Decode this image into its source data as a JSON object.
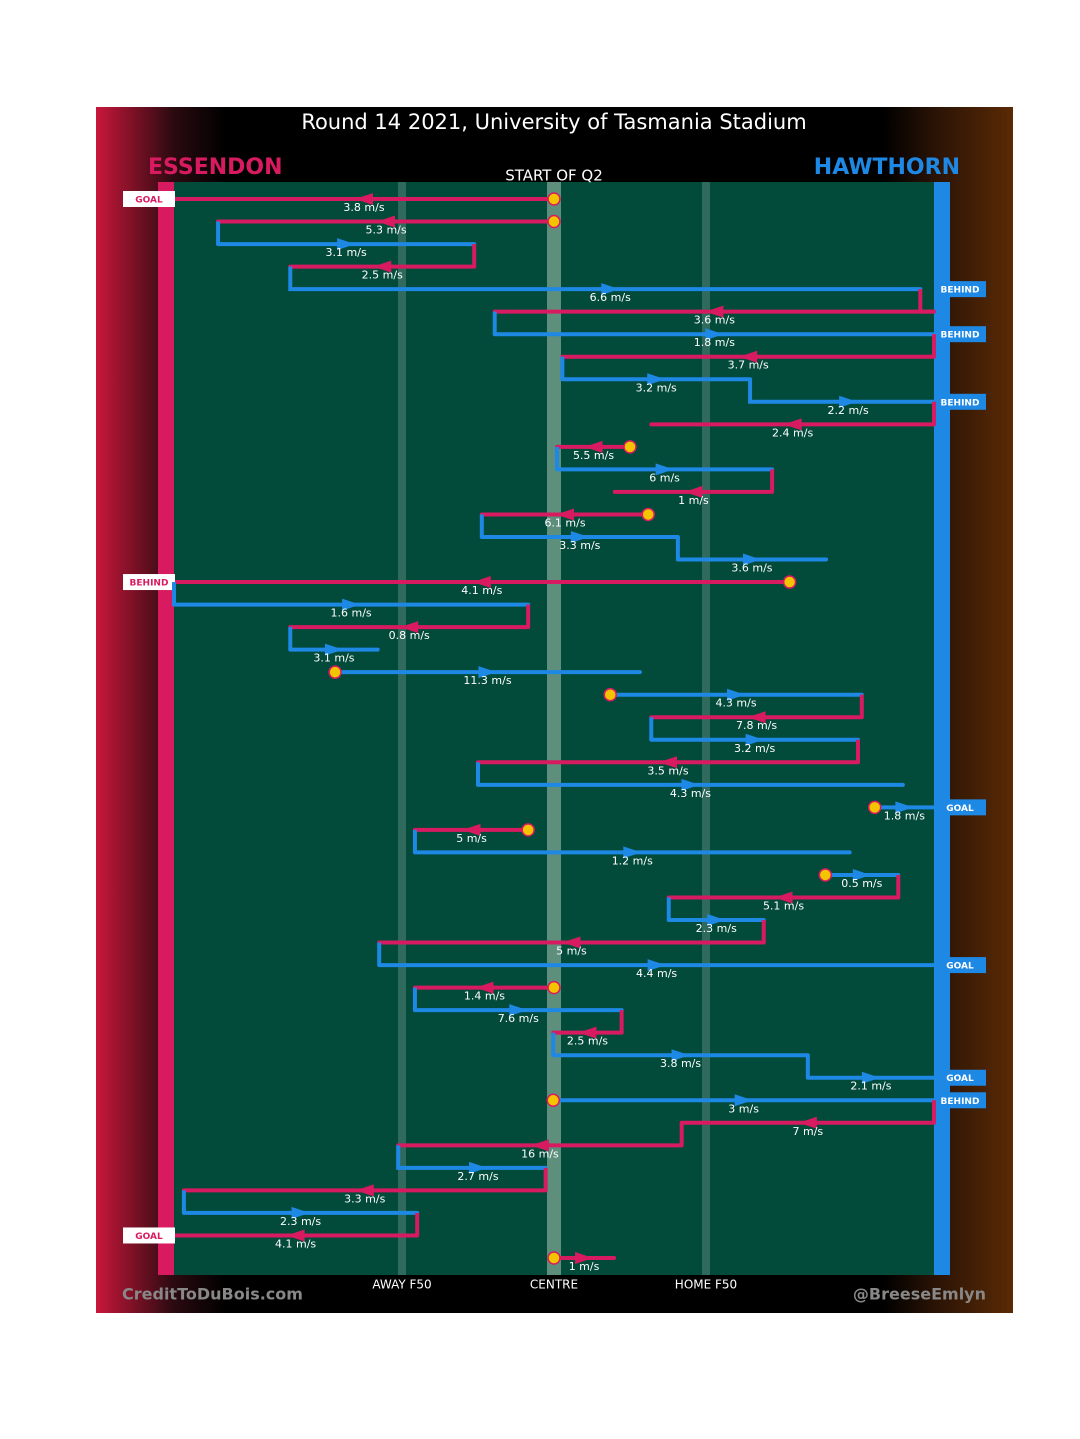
{
  "chart_data": {
    "type": "possession-chain",
    "title": "Round 14 2021, University of Tasmania Stadium",
    "subtitle": "START OF Q2",
    "credit_left": "CreditToDuBois.com",
    "credit_right": "@BreeseEmlyn",
    "teams": [
      {
        "name": "ESSENDON",
        "color": "#d81b60"
      },
      {
        "name": "HAWTHORN",
        "color": "#1e88e5"
      }
    ],
    "xlim": [
      0,
      100
    ],
    "xticks": [
      {
        "value": 30,
        "label": "AWAY F50"
      },
      {
        "value": 50,
        "label": "CENTRE"
      },
      {
        "value": 70,
        "label": "HOME F50"
      }
    ],
    "segments": [
      {
        "team": 0,
        "x": [
          50,
          0
        ],
        "label": "3.8 m/s",
        "result": "GOAL"
      },
      {
        "team": 0,
        "x": [
          50,
          5.8
        ],
        "label": "5.3 m/s"
      },
      {
        "team": 1,
        "x": [
          5.8,
          39.5
        ],
        "label": "3.1 m/s"
      },
      {
        "team": 0,
        "x": [
          39.5,
          15.3
        ],
        "label": "2.5 m/s"
      },
      {
        "team": 1,
        "x": [
          16.6,
          98.2
        ],
        "label": "6.6 m/s",
        "result": "BEHIND"
      },
      {
        "team": 0,
        "x": [
          100,
          42.2
        ],
        "label": "3.6 m/s"
      },
      {
        "team": 1,
        "x": [
          42.2,
          100
        ],
        "label": "1.8 m/s",
        "result": "BEHIND"
      },
      {
        "team": 0,
        "x": [
          100,
          51.1
        ],
        "label": "3.7 m/s"
      },
      {
        "team": 1,
        "x": [
          51.1,
          75.8
        ],
        "label": "3.2 m/s"
      },
      {
        "team": 1,
        "x": [
          77.4,
          100
        ],
        "label": "2.2 m/s",
        "result": "BEHIND"
      },
      {
        "team": 0,
        "x": [
          100,
          62.8
        ],
        "label": "2.4 m/s"
      },
      {
        "team": 0,
        "x": [
          60,
          50.4
        ],
        "label": "5.5 m/s"
      },
      {
        "team": 1,
        "x": [
          50.4,
          78.7
        ],
        "label": "6 m/s"
      },
      {
        "team": 0,
        "x": [
          78.7,
          58
        ],
        "label": "1 m/s"
      },
      {
        "team": 0,
        "x": [
          62.4,
          40.5
        ],
        "label": "6.1 m/s"
      },
      {
        "team": 1,
        "x": [
          40.5,
          66.3
        ],
        "label": "3.3 m/s"
      },
      {
        "team": 1,
        "x": [
          66.3,
          85.8
        ],
        "label": "3.6 m/s"
      },
      {
        "team": 0,
        "x": [
          81,
          0
        ],
        "label": "4.1 m/s",
        "result": "BEHIND"
      },
      {
        "team": 1,
        "x": [
          0,
          46.6
        ],
        "label": "1.6 m/s"
      },
      {
        "team": 0,
        "x": [
          46.6,
          15.3
        ],
        "label": "0.8 m/s"
      },
      {
        "team": 1,
        "x": [
          15.3,
          26.8
        ],
        "label": "3.1 m/s"
      },
      {
        "team": 1,
        "x": [
          21.2,
          61.3
        ],
        "label": "11.3 m/s"
      },
      {
        "team": 1,
        "x": [
          57.4,
          90.5
        ],
        "label": "4.3 m/s"
      },
      {
        "team": 0,
        "x": [
          90.5,
          62.8
        ],
        "label": "7.8 m/s"
      },
      {
        "team": 1,
        "x": [
          62.8,
          90
        ],
        "label": "3.2 m/s"
      },
      {
        "team": 0,
        "x": [
          90,
          40
        ],
        "label": "3.5 m/s"
      },
      {
        "team": 1,
        "x": [
          40,
          95.9
        ],
        "label": "4.3 m/s"
      },
      {
        "team": 1,
        "x": [
          92.2,
          100
        ],
        "label": "1.8 m/s",
        "result": "GOAL"
      },
      {
        "team": 0,
        "x": [
          46.6,
          31.7
        ],
        "label": "5 m/s"
      },
      {
        "team": 1,
        "x": [
          31.7,
          88.9
        ],
        "label": "1.2 m/s"
      },
      {
        "team": 1,
        "x": [
          85.7,
          95.3
        ],
        "label": "0.5 m/s"
      },
      {
        "team": 0,
        "x": [
          95.3,
          65.1
        ],
        "label": "5.1 m/s"
      },
      {
        "team": 1,
        "x": [
          65.1,
          77.6
        ],
        "label": "2.3 m/s"
      },
      {
        "team": 0,
        "x": [
          77.6,
          27
        ],
        "label": "5 m/s"
      },
      {
        "team": 1,
        "x": [
          27,
          100
        ],
        "label": "4.4 m/s",
        "result": "GOAL"
      },
      {
        "team": 0,
        "x": [
          50,
          31.7
        ],
        "label": "1.4 m/s"
      },
      {
        "team": 1,
        "x": [
          31.7,
          58.9
        ],
        "label": "7.6 m/s"
      },
      {
        "team": 0,
        "x": [
          58.9,
          49.9
        ],
        "label": "2.5 m/s"
      },
      {
        "team": 1,
        "x": [
          49.9,
          83.4
        ],
        "label": "3.8 m/s"
      },
      {
        "team": 1,
        "x": [
          83.4,
          100
        ],
        "label": "2.1 m/s",
        "result": "GOAL"
      },
      {
        "team": 1,
        "x": [
          49.9,
          100
        ],
        "label": "3 m/s",
        "result": "BEHIND"
      },
      {
        "team": 0,
        "x": [
          100,
          66.8
        ],
        "label": "7 m/s"
      },
      {
        "team": 0,
        "x": [
          66.8,
          29.5
        ],
        "label": "16 m/s"
      },
      {
        "team": 1,
        "x": [
          31.1,
          48.9
        ],
        "label": "2.7 m/s"
      },
      {
        "team": 0,
        "x": [
          48.9,
          1.3
        ],
        "label": "3.3 m/s"
      },
      {
        "team": 1,
        "x": [
          1.3,
          32
        ],
        "label": "2.3 m/s"
      },
      {
        "team": 0,
        "x": [
          32,
          0
        ],
        "label": "4.1 m/s",
        "result": "GOAL"
      },
      {
        "team": 0,
        "x": [
          50,
          57.9
        ],
        "label": "1 m/s"
      }
    ]
  }
}
